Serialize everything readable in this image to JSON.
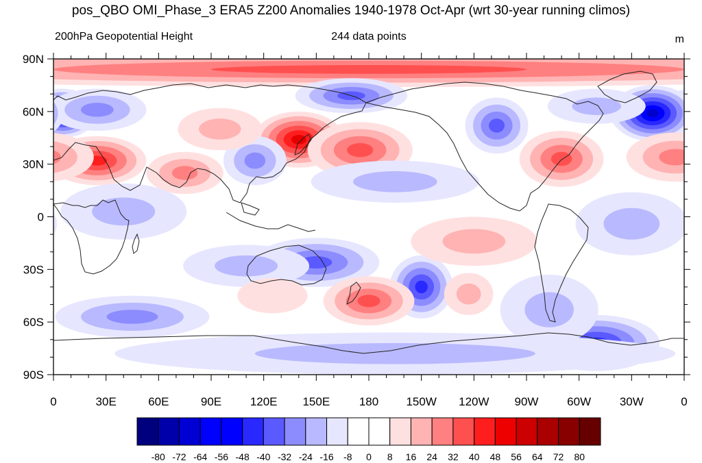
{
  "title": "pos_QBO OMI_Phase_3 ERA5 Z200 Anomalies 1940-1978 Oct-Apr (wrt 30-year running climos)",
  "left_subtitle": "200hPa Geopotential Height",
  "center_subtitle": "244 data points",
  "units": "m",
  "lat_ticks": [
    "90N",
    "60N",
    "30N",
    "0",
    "30S",
    "60S",
    "90S"
  ],
  "lon_ticks": [
    "0",
    "30E",
    "60E",
    "90E",
    "120E",
    "150E",
    "180",
    "150W",
    "120W",
    "90W",
    "60W",
    "30W",
    "0"
  ],
  "colorbar": {
    "labels": [
      "-80",
      "-72",
      "-64",
      "-56",
      "-48",
      "-40",
      "-32",
      "-24",
      "-16",
      "-8",
      "0",
      "8",
      "16",
      "24",
      "32",
      "40",
      "48",
      "56",
      "64",
      "72",
      "80"
    ],
    "colors": [
      "#00007f",
      "#0000aa",
      "#0000d4",
      "#0000ff",
      "#0000ff",
      "#2828ff",
      "#5a5aff",
      "#8c8cff",
      "#b9b9ff",
      "#e6e6ff",
      "#ffffff",
      "#ffffff",
      "#ffe0e0",
      "#ffb3b3",
      "#ff8080",
      "#ff5050",
      "#ff1e1e",
      "#ee0000",
      "#cc0000",
      "#aa0000",
      "#880000",
      "#660000"
    ]
  },
  "anomaly_fill_colors": {
    "pos": [
      "#ffe0e0",
      "#ffb3b3",
      "#ff8080",
      "#ff5050",
      "#ff1e1e",
      "#e60000",
      "#cc0000"
    ],
    "neg": [
      "#e6e6ff",
      "#b9b9ff",
      "#8c8cff",
      "#5a5aff",
      "#2828ff",
      "#0000ff",
      "#0000cc"
    ]
  },
  "anomalies": [
    {
      "lon": 180,
      "lat": 84,
      "value": 30,
      "sx": 180,
      "sy": 5
    },
    {
      "lon": 140,
      "lat": 44,
      "value": 44,
      "sx": 13,
      "sy": 8
    },
    {
      "lon": 175,
      "lat": 38,
      "value": 26,
      "sx": 15,
      "sy": 8
    },
    {
      "lon": 5,
      "lat": 59,
      "value": -66,
      "sx": 10,
      "sy": 7
    },
    {
      "lon": 25,
      "lat": 61,
      "value": -20,
      "sx": 14,
      "sy": 6
    },
    {
      "lon": 342,
      "lat": 59,
      "value": -66,
      "sx": 12,
      "sy": 8
    },
    {
      "lon": 310,
      "lat": 63,
      "value": -12,
      "sx": 14,
      "sy": 5
    },
    {
      "lon": 25,
      "lat": 32,
      "value": 36,
      "sx": 14,
      "sy": 7
    },
    {
      "lon": 75,
      "lat": 25,
      "value": 18,
      "sx": 11,
      "sy": 6
    },
    {
      "lon": 290,
      "lat": 33,
      "value": 30,
      "sx": 12,
      "sy": 8
    },
    {
      "lon": 355,
      "lat": 34,
      "value": 18,
      "sx": 14,
      "sy": 7
    },
    {
      "lon": 170,
      "lat": 69,
      "value": -28,
      "sx": 16,
      "sy": 5
    },
    {
      "lon": 253,
      "lat": 52,
      "value": -30,
      "sx": 9,
      "sy": 8
    },
    {
      "lon": 115,
      "lat": 32,
      "value": -24,
      "sx": 9,
      "sy": 7
    },
    {
      "lon": 195,
      "lat": 20,
      "value": -16,
      "sx": 24,
      "sy": 6
    },
    {
      "lon": 150,
      "lat": -26,
      "value": -28,
      "sx": 18,
      "sy": 7
    },
    {
      "lon": 110,
      "lat": -28,
      "value": -16,
      "sx": 18,
      "sy": 6
    },
    {
      "lon": 210,
      "lat": -40,
      "value": -36,
      "sx": 9,
      "sy": 9
    },
    {
      "lon": 180,
      "lat": -48,
      "value": 26,
      "sx": 13,
      "sy": 7
    },
    {
      "lon": 45,
      "lat": -57,
      "value": -20,
      "sx": 22,
      "sy": 6
    },
    {
      "lon": 310,
      "lat": -72,
      "value": -36,
      "sx": 18,
      "sy": 8
    },
    {
      "lon": 283,
      "lat": -53,
      "value": -14,
      "sx": 14,
      "sy": 10
    },
    {
      "lon": 237,
      "lat": -44,
      "value": 14,
      "sx": 7,
      "sy": 6
    },
    {
      "lon": 125,
      "lat": -45,
      "value": 8,
      "sx": 10,
      "sy": 5
    },
    {
      "lon": 40,
      "lat": 3,
      "value": -10,
      "sx": 18,
      "sy": 8
    },
    {
      "lon": 240,
      "lat": -14,
      "value": 9,
      "sx": 18,
      "sy": 7
    },
    {
      "lon": 195,
      "lat": -78,
      "value": -9,
      "sx": 80,
      "sy": 6
    },
    {
      "lon": 95,
      "lat": 50,
      "value": 9,
      "sx": 12,
      "sy": 6
    },
    {
      "lon": 330,
      "lat": -4,
      "value": -10,
      "sx": 16,
      "sy": 9
    }
  ]
}
